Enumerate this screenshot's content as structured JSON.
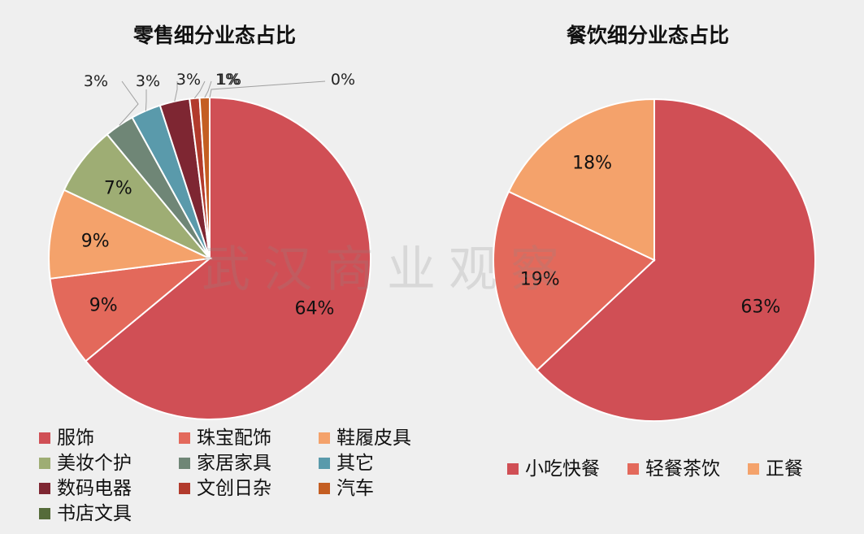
{
  "watermark": "武汉商业观察",
  "chart_data": [
    {
      "type": "pie",
      "title": "零售细分业态占比",
      "categories": [
        "服饰",
        "珠宝配饰",
        "鞋履皮具",
        "美妆个护",
        "家居家具",
        "其它",
        "数码电器",
        "文创日杂",
        "汽车",
        "书店文具"
      ],
      "values": [
        64,
        9,
        9,
        7,
        3,
        3,
        3,
        1,
        1,
        0
      ],
      "labels": [
        "64%",
        "9%",
        "9%",
        "7%",
        "3%",
        "3%",
        "3%",
        "1%",
        "1%",
        "0%"
      ],
      "colors": [
        "#d04f55",
        "#e3695b",
        "#f4a26b",
        "#9ead74",
        "#6f8676",
        "#5a9aab",
        "#7e2632",
        "#b23a2c",
        "#c45e22",
        "#556b3a"
      ],
      "legend": "bottom"
    },
    {
      "type": "pie",
      "title": "餐饮细分业态占比",
      "categories": [
        "小吃快餐",
        "轻餐茶饮",
        "正餐"
      ],
      "values": [
        63,
        19,
        18
      ],
      "labels": [
        "63%",
        "19%",
        "18%"
      ],
      "colors": [
        "#d04f55",
        "#e3695b",
        "#f4a26b"
      ],
      "legend": "bottom"
    }
  ]
}
